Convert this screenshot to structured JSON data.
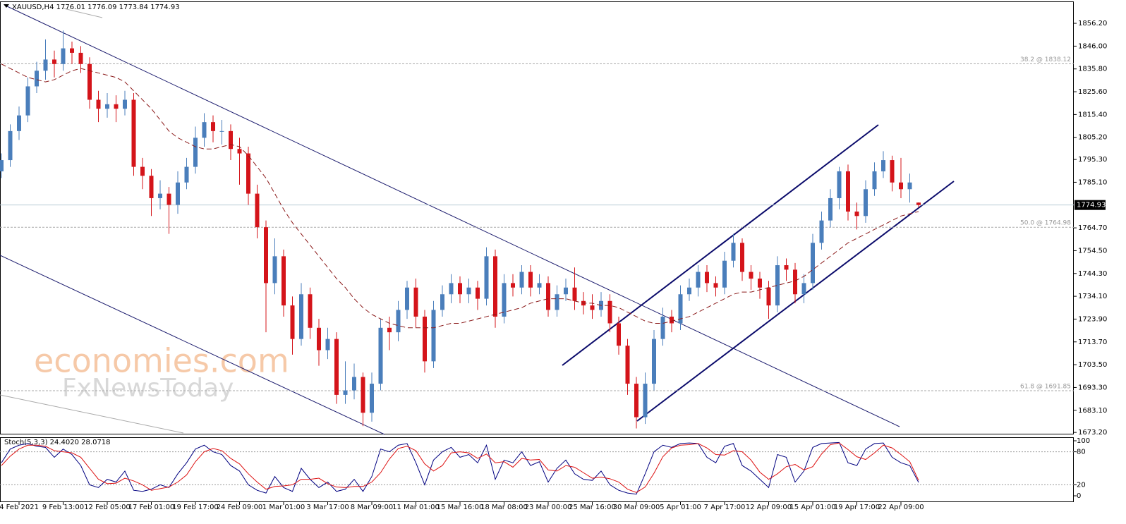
{
  "chart_data": [
    {
      "type": "candlestick",
      "title": "XAUUSD,H4  1776.01 1776.09 1773.84 1774.93",
      "categories": [
        null,
        null,
        "4 Feb 2021",
        null,
        null,
        null,
        null,
        "9 Feb 13:00",
        null,
        null,
        null,
        null,
        "12 Feb 05:00",
        null,
        null,
        null,
        null,
        "17 Feb 01:00",
        null,
        null,
        null,
        null,
        "19 Feb 17:00",
        null,
        null,
        null,
        null,
        "24 Feb 09:00",
        null,
        null,
        null,
        null,
        "1 Mar 01:00",
        null,
        null,
        null,
        null,
        "3 Mar 17:00",
        null,
        null,
        null,
        null,
        "8 Mar 09:00",
        null,
        null,
        null,
        null,
        "11 Mar 01:00",
        null,
        null,
        null,
        null,
        "15 Mar 16:00",
        null,
        null,
        null,
        null,
        "18 Mar 08:00",
        null,
        null,
        null,
        null,
        "23 Mar 00:00",
        null,
        null,
        null,
        null,
        "25 Mar 16:00",
        null,
        null,
        null,
        null,
        "30 Mar 09:00",
        null,
        null,
        null,
        null,
        "5 Apr 01:00",
        null,
        null,
        null,
        null,
        "7 Apr 17:00",
        null,
        null,
        null,
        null,
        "12 Apr 09:00",
        null,
        null,
        null,
        null,
        "15 Apr 01:00",
        null,
        null,
        null,
        null,
        "19 Apr 17:00",
        null,
        null,
        null,
        null,
        "22 Apr 09:00",
        null,
        null
      ],
      "ohlc": [
        [
          1790,
          1798,
          1787,
          1795
        ],
        [
          1795,
          1811,
          1792,
          1808
        ],
        [
          1808,
          1819,
          1804,
          1815
        ],
        [
          1815,
          1832,
          1812,
          1828
        ],
        [
          1828,
          1839,
          1825,
          1835
        ],
        [
          1835,
          1849,
          1831,
          1840
        ],
        [
          1840,
          1844,
          1832,
          1838
        ],
        [
          1838,
          1853,
          1835,
          1845
        ],
        [
          1845,
          1848,
          1838,
          1843
        ],
        [
          1843,
          1846,
          1834,
          1838
        ],
        [
          1838,
          1841,
          1818,
          1822
        ],
        [
          1822,
          1826,
          1812,
          1818
        ],
        [
          1818,
          1825,
          1814,
          1820
        ],
        [
          1820,
          1824,
          1812,
          1818
        ],
        [
          1818,
          1826,
          1815,
          1822
        ],
        [
          1822,
          1825,
          1788,
          1792
        ],
        [
          1792,
          1796,
          1782,
          1788
        ],
        [
          1788,
          1791,
          1770,
          1778
        ],
        [
          1778,
          1786,
          1773,
          1780
        ],
        [
          1780,
          1783,
          1762,
          1775
        ],
        [
          1775,
          1790,
          1771,
          1785
        ],
        [
          1785,
          1796,
          1782,
          1792
        ],
        [
          1792,
          1810,
          1789,
          1805
        ],
        [
          1805,
          1816,
          1801,
          1812
        ],
        [
          1812,
          1815,
          1803,
          1808
        ],
        [
          1808,
          1813,
          1802,
          1808
        ],
        [
          1808,
          1811,
          1795,
          1800
        ],
        [
          1800,
          1805,
          1784,
          1798
        ],
        [
          1798,
          1801,
          1775,
          1780
        ],
        [
          1780,
          1784,
          1760,
          1765
        ],
        [
          1765,
          1768,
          1718,
          1740
        ],
        [
          1740,
          1760,
          1735,
          1752
        ],
        [
          1752,
          1755,
          1725,
          1730
        ],
        [
          1730,
          1734,
          1708,
          1715
        ],
        [
          1715,
          1740,
          1712,
          1735
        ],
        [
          1735,
          1738,
          1715,
          1720
        ],
        [
          1720,
          1724,
          1703,
          1710
        ],
        [
          1710,
          1720,
          1706,
          1715
        ],
        [
          1715,
          1718,
          1686,
          1690
        ],
        [
          1690,
          1705,
          1686,
          1692
        ],
        [
          1692,
          1704,
          1688,
          1698
        ],
        [
          1698,
          1700,
          1676,
          1682
        ],
        [
          1682,
          1700,
          1678,
          1695
        ],
        [
          1695,
          1724,
          1692,
          1720
        ],
        [
          1720,
          1725,
          1710,
          1718
        ],
        [
          1718,
          1732,
          1714,
          1728
        ],
        [
          1728,
          1741,
          1724,
          1738
        ],
        [
          1738,
          1742,
          1720,
          1725
        ],
        [
          1725,
          1728,
          1700,
          1705
        ],
        [
          1705,
          1732,
          1702,
          1728
        ],
        [
          1728,
          1739,
          1725,
          1735
        ],
        [
          1735,
          1744,
          1731,
          1740
        ],
        [
          1740,
          1743,
          1731,
          1735
        ],
        [
          1735,
          1742,
          1731,
          1738
        ],
        [
          1738,
          1741,
          1728,
          1733
        ],
        [
          1733,
          1756,
          1730,
          1752
        ],
        [
          1752,
          1755,
          1720,
          1725
        ],
        [
          1725,
          1744,
          1722,
          1740
        ],
        [
          1740,
          1744,
          1734,
          1738
        ],
        [
          1738,
          1748,
          1735,
          1745
        ],
        [
          1745,
          1748,
          1734,
          1738
        ],
        [
          1738,
          1744,
          1735,
          1740
        ],
        [
          1740,
          1743,
          1725,
          1728
        ],
        [
          1728,
          1739,
          1725,
          1735
        ],
        [
          1735,
          1742,
          1732,
          1738
        ],
        [
          1738,
          1747,
          1728,
          1732
        ],
        [
          1732,
          1736,
          1726,
          1730
        ],
        [
          1730,
          1735,
          1724,
          1728
        ],
        [
          1728,
          1736,
          1725,
          1732
        ],
        [
          1732,
          1735,
          1718,
          1722
        ],
        [
          1722,
          1725,
          1708,
          1712
        ],
        [
          1712,
          1715,
          1690,
          1695
        ],
        [
          1695,
          1698,
          1675,
          1680
        ],
        [
          1680,
          1700,
          1677,
          1695
        ],
        [
          1695,
          1719,
          1692,
          1715
        ],
        [
          1715,
          1729,
          1712,
          1725
        ],
        [
          1725,
          1728,
          1718,
          1722
        ],
        [
          1722,
          1739,
          1719,
          1735
        ],
        [
          1735,
          1742,
          1732,
          1738
        ],
        [
          1738,
          1748,
          1734,
          1745
        ],
        [
          1745,
          1748,
          1736,
          1740
        ],
        [
          1740,
          1743,
          1734,
          1738
        ],
        [
          1738,
          1754,
          1735,
          1750
        ],
        [
          1750,
          1762,
          1747,
          1758
        ],
        [
          1758,
          1760,
          1741,
          1745
        ],
        [
          1745,
          1748,
          1737,
          1742
        ],
        [
          1742,
          1745,
          1733,
          1738
        ],
        [
          1738,
          1741,
          1724,
          1730
        ],
        [
          1730,
          1752,
          1727,
          1748
        ],
        [
          1748,
          1751,
          1741,
          1746
        ],
        [
          1746,
          1749,
          1731,
          1735
        ],
        [
          1735,
          1744,
          1731,
          1740
        ],
        [
          1740,
          1762,
          1737,
          1758
        ],
        [
          1758,
          1772,
          1755,
          1768
        ],
        [
          1768,
          1782,
          1765,
          1778
        ],
        [
          1778,
          1792,
          1773,
          1790
        ],
        [
          1790,
          1793,
          1768,
          1772
        ],
        [
          1772,
          1776,
          1764,
          1770
        ],
        [
          1770,
          1786,
          1767,
          1782
        ],
        [
          1782,
          1794,
          1779,
          1790
        ],
        [
          1790,
          1799,
          1787,
          1795
        ],
        [
          1795,
          1797,
          1781,
          1785
        ],
        [
          1785,
          1796,
          1778,
          1782
        ],
        [
          1782,
          1789,
          1776,
          1785
        ],
        [
          1776.01,
          1776.09,
          1773.84,
          1774.93
        ]
      ],
      "up_color": "#4a7ebb",
      "down_color": "#d4141a",
      "ma": {
        "color": "#8b1a1a",
        "values": [
          1838,
          1836,
          1834,
          1832,
          1831,
          1830,
          1831,
          1833,
          1835,
          1836,
          1835,
          1834,
          1833,
          1832,
          1830,
          1826,
          1822,
          1818,
          1813,
          1808,
          1805,
          1803,
          1801,
          1800,
          1800,
          1801,
          1802,
          1801,
          1797,
          1792,
          1787,
          1780,
          1773,
          1767,
          1762,
          1757,
          1752,
          1747,
          1742,
          1738,
          1733,
          1729,
          1726,
          1724,
          1722,
          1721,
          1720,
          1720,
          1720,
          1720,
          1721,
          1722,
          1722,
          1723,
          1724,
          1725,
          1726,
          1727,
          1728,
          1729,
          1731,
          1732,
          1733,
          1733,
          1733,
          1732,
          1731,
          1731,
          1730,
          1730,
          1729,
          1727,
          1725,
          1723,
          1722,
          1722,
          1723,
          1724,
          1725,
          1727,
          1729,
          1731,
          1733,
          1735,
          1736,
          1736,
          1737,
          1738,
          1739,
          1740,
          1741,
          1743,
          1746,
          1749,
          1752,
          1755,
          1758,
          1760,
          1762,
          1764,
          1766,
          1768,
          1770,
          1771,
          1772
        ]
      },
      "ylim": [
        1672.3,
        1866
      ],
      "yticks": [
        {
          "value": 1856.2,
          "label": "1856.20"
        },
        {
          "value": 1846,
          "label": "1846.00"
        },
        {
          "value": 1835.8,
          "label": "1835.80"
        },
        {
          "value": 1825.6,
          "label": "1825.60"
        },
        {
          "value": 1815.4,
          "label": "1815.40"
        },
        {
          "value": 1805.2,
          "label": "1805.20"
        },
        {
          "value": 1795.3,
          "label": "1795.30"
        },
        {
          "value": 1785.1,
          "label": "1785.10"
        },
        {
          "value": 1764.7,
          "label": "1764.70"
        },
        {
          "value": 1754.5,
          "label": "1754.50"
        },
        {
          "value": 1744.3,
          "label": "1744.30"
        },
        {
          "value": 1734.1,
          "label": "1734.10"
        },
        {
          "value": 1723.9,
          "label": "1723.90"
        },
        {
          "value": 1713.7,
          "label": "1713.70"
        },
        {
          "value": 1703.5,
          "label": "1703.50"
        },
        {
          "value": 1693.3,
          "label": "1693.30"
        },
        {
          "value": 1683.1,
          "label": "1683.10"
        },
        {
          "value": 1673.2,
          "label": "1673.20"
        }
      ],
      "levels": [
        {
          "value": 1838.12,
          "label": "38.2 @ 1838.12"
        },
        {
          "value": 1764.98,
          "label": "50.0 @ 1764.98"
        },
        {
          "value": 1691.85,
          "label": "61.8 @ 1691.85"
        }
      ],
      "last_price": 1774.93
    },
    {
      "type": "line",
      "title": "Stoch(5,3,3) 24.4020 28.0718",
      "series": [
        {
          "color": "#000080",
          "values": [
            60,
            85,
            92,
            95,
            90,
            88,
            70,
            85,
            75,
            55,
            20,
            15,
            30,
            25,
            45,
            10,
            8,
            12,
            20,
            15,
            40,
            60,
            85,
            92,
            80,
            75,
            55,
            45,
            20,
            10,
            5,
            35,
            15,
            8,
            50,
            30,
            15,
            25,
            8,
            12,
            30,
            8,
            35,
            85,
            80,
            92,
            95,
            60,
            20,
            65,
            80,
            88,
            70,
            75,
            60,
            92,
            30,
            65,
            60,
            80,
            55,
            62,
            25,
            50,
            65,
            40,
            30,
            28,
            45,
            20,
            10,
            5,
            3,
            40,
            80,
            92,
            88,
            95,
            96,
            95,
            70,
            60,
            90,
            95,
            55,
            45,
            30,
            15,
            75,
            70,
            25,
            45,
            88,
            95,
            96,
            97,
            60,
            55,
            85,
            95,
            96,
            70,
            60,
            55,
            24.402
          ]
        },
        {
          "color": "#dd1111",
          "values": [
            55,
            72,
            85,
            92,
            92,
            90,
            82,
            80,
            78,
            70,
            50,
            30,
            22,
            23,
            32,
            27,
            20,
            10,
            13,
            16,
            25,
            38,
            62,
            80,
            86,
            82,
            68,
            58,
            40,
            25,
            12,
            17,
            18,
            20,
            30,
            30,
            32,
            22,
            16,
            15,
            17,
            17,
            25,
            42,
            67,
            86,
            90,
            82,
            58,
            45,
            55,
            78,
            80,
            78,
            68,
            76,
            60,
            62,
            52,
            68,
            65,
            66,
            47,
            45,
            55,
            52,
            42,
            32,
            34,
            31,
            25,
            12,
            6,
            16,
            41,
            71,
            87,
            92,
            93,
            95,
            87,
            75,
            74,
            82,
            80,
            65,
            43,
            30,
            40,
            53,
            57,
            47,
            53,
            76,
            93,
            96,
            84,
            71,
            66,
            78,
            92,
            87,
            75,
            62,
            28.0718
          ]
        }
      ],
      "ylim": [
        -11.5,
        106.4
      ],
      "yticks": [
        0,
        20,
        80,
        100
      ],
      "levels": [
        20,
        80
      ]
    }
  ],
  "watermark": {
    "line1": "economies.com",
    "line2": "FxNewsToday"
  }
}
